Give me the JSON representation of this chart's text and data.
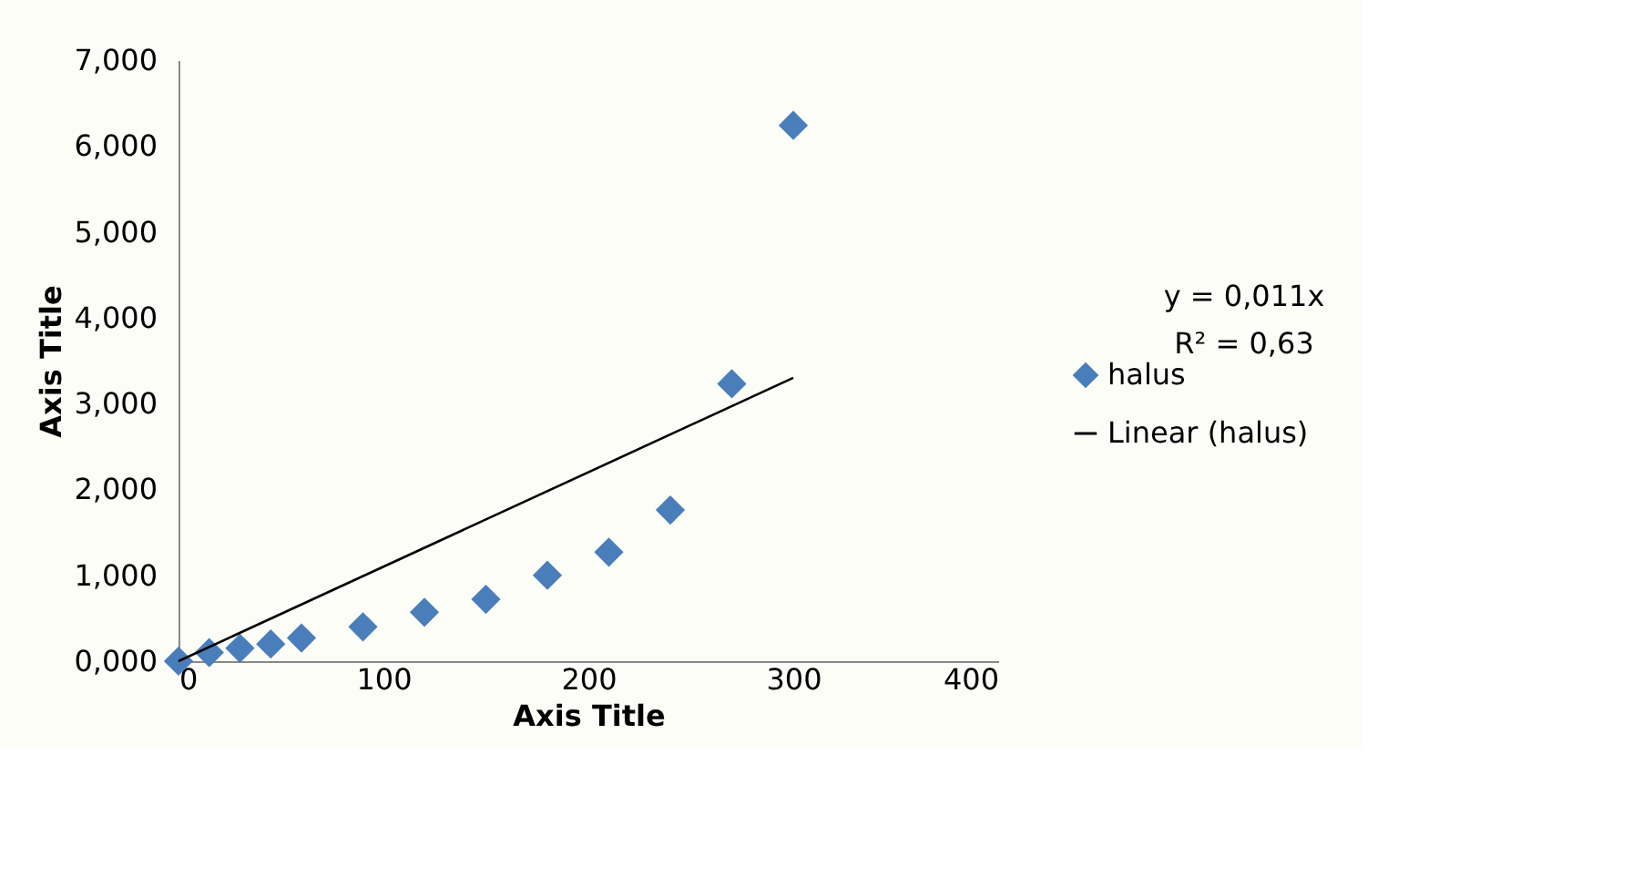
{
  "chart_data": {
    "type": "scatter",
    "xlabel": "Axis Title",
    "ylabel": "Axis Title",
    "xlim": [
      0,
      400
    ],
    "xticks": [
      0,
      100,
      200,
      300,
      400
    ],
    "ylim": [
      0,
      7
    ],
    "yticks": [
      {
        "value": 0,
        "label": "0,000"
      },
      {
        "value": 1,
        "label": "1,000"
      },
      {
        "value": 2,
        "label": "2,000"
      },
      {
        "value": 3,
        "label": "3,000"
      },
      {
        "value": 4,
        "label": "4,000"
      },
      {
        "value": 5,
        "label": "5,000"
      },
      {
        "value": 6,
        "label": "6,000"
      },
      {
        "value": 7,
        "label": "7,000"
      }
    ],
    "series": [
      {
        "name": "halus",
        "type": "scatter",
        "color": "#4a7ebb",
        "marker": "diamond",
        "x": [
          0,
          15,
          30,
          45,
          60,
          90,
          120,
          150,
          180,
          210,
          240,
          270,
          300
        ],
        "values": [
          0,
          0.1,
          0.15,
          0.2,
          0.27,
          0.4,
          0.57,
          0.72,
          1.0,
          1.27,
          1.76,
          3.23,
          6.24
        ]
      },
      {
        "name": "Linear (halus)",
        "type": "line",
        "color": "#000000",
        "line_style": "solid",
        "x": [
          0,
          300
        ],
        "values": [
          0,
          3.3
        ]
      }
    ],
    "annotations": [
      "y = 0,011x",
      "R² = 0,63"
    ],
    "grid": false,
    "legend": "right"
  }
}
